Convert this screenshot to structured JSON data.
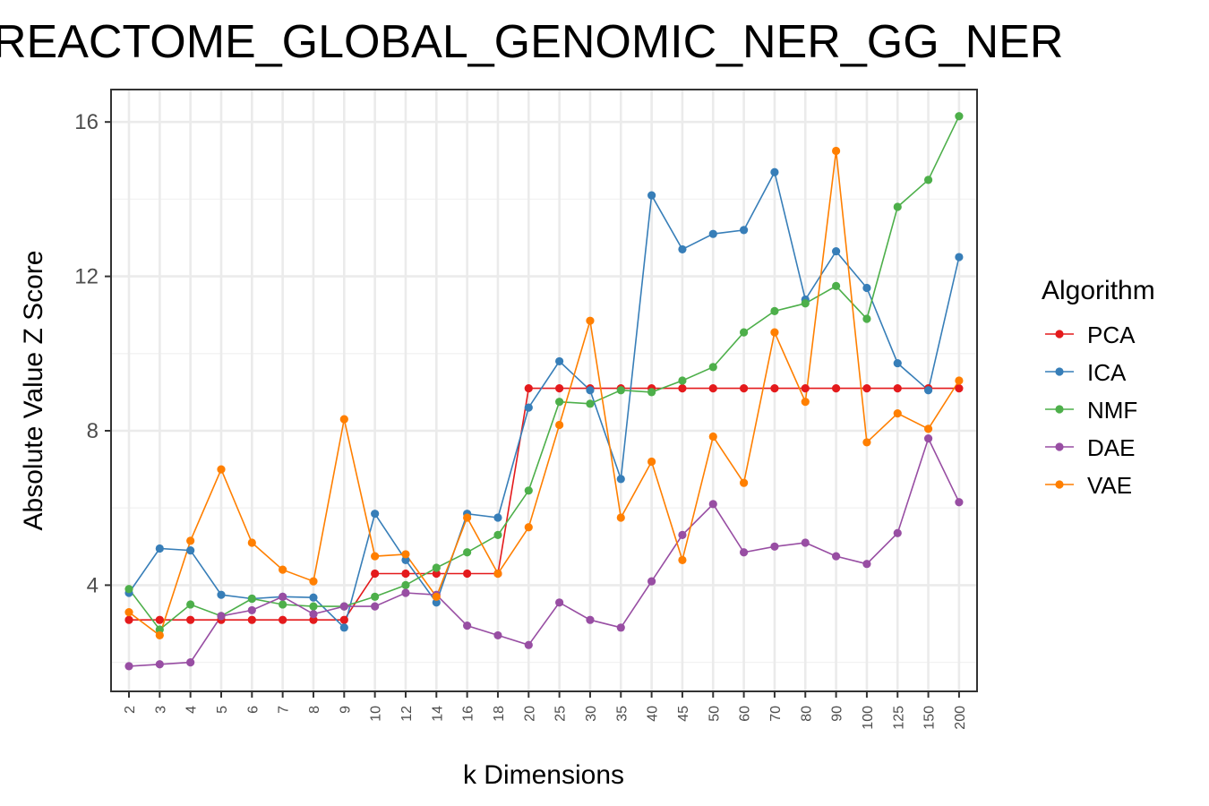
{
  "chart_data": {
    "type": "line",
    "title": "REACTOME_GLOBAL_GENOMIC_NER_GG_NER",
    "xlabel": "k Dimensions",
    "ylabel": "Absolute Value Z Score",
    "categories": [
      "2",
      "3",
      "4",
      "5",
      "6",
      "7",
      "8",
      "9",
      "10",
      "12",
      "14",
      "16",
      "18",
      "20",
      "25",
      "30",
      "35",
      "40",
      "45",
      "50",
      "60",
      "70",
      "80",
      "90",
      "100",
      "125",
      "150",
      "200"
    ],
    "ylim": [
      1.2,
      16.8
    ],
    "yticks": [
      4,
      8,
      12,
      16
    ],
    "grid": true,
    "legend": {
      "title": "Algorithm",
      "position": "right"
    },
    "series": [
      {
        "name": "PCA",
        "color": "#e41a1c",
        "values": [
          3.1,
          3.1,
          3.1,
          3.1,
          3.1,
          3.1,
          3.1,
          3.1,
          4.3,
          4.3,
          4.3,
          4.3,
          4.3,
          9.1,
          9.1,
          9.1,
          9.1,
          9.1,
          9.1,
          9.1,
          9.1,
          9.1,
          9.1,
          9.1,
          9.1,
          9.1,
          9.1,
          9.1
        ]
      },
      {
        "name": "ICA",
        "color": "#377eb8",
        "values": [
          3.8,
          4.95,
          4.9,
          3.75,
          3.65,
          3.7,
          3.68,
          2.9,
          5.85,
          4.65,
          3.55,
          5.85,
          5.75,
          8.6,
          9.8,
          9.05,
          6.75,
          14.1,
          12.7,
          13.1,
          13.2,
          14.7,
          11.4,
          12.65,
          11.7,
          9.75,
          9.05,
          12.5
        ]
      },
      {
        "name": "NMF",
        "color": "#4daf4a",
        "values": [
          3.9,
          2.85,
          3.5,
          3.2,
          3.65,
          3.5,
          3.45,
          3.45,
          3.7,
          4.0,
          4.45,
          4.85,
          5.3,
          6.45,
          8.75,
          8.7,
          9.05,
          9.0,
          9.3,
          9.65,
          10.55,
          11.1,
          11.3,
          11.75,
          10.9,
          13.8,
          14.5,
          16.15
        ]
      },
      {
        "name": "DAE",
        "color": "#984ea3",
        "values": [
          1.9,
          1.95,
          2.0,
          3.2,
          3.35,
          3.7,
          3.25,
          3.45,
          3.45,
          3.8,
          3.75,
          2.95,
          2.7,
          2.45,
          3.55,
          3.1,
          2.9,
          4.1,
          5.3,
          6.1,
          4.85,
          5.0,
          5.1,
          4.75,
          4.55,
          5.35,
          7.8,
          6.15
        ]
      },
      {
        "name": "VAE",
        "color": "#ff7f00",
        "values": [
          3.3,
          2.7,
          5.15,
          7.0,
          5.1,
          4.4,
          4.1,
          8.3,
          4.75,
          4.8,
          3.7,
          5.75,
          4.3,
          5.5,
          8.15,
          10.85,
          5.75,
          7.2,
          4.65,
          7.85,
          6.65,
          10.55,
          8.75,
          15.25,
          7.7,
          8.45,
          8.05,
          9.3
        ]
      }
    ]
  }
}
